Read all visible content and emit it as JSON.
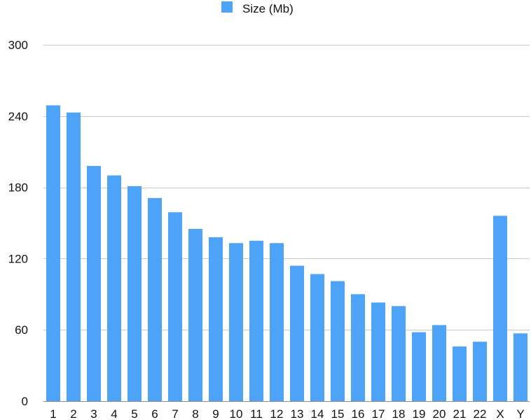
{
  "chart_data": {
    "type": "bar",
    "series": [
      {
        "name": "Size (Mb)",
        "color": "#4da3f7",
        "values": [
          249,
          243,
          198,
          190,
          181,
          171,
          159,
          145,
          138,
          133,
          135,
          133,
          114,
          107,
          101,
          90,
          83,
          80,
          58,
          64,
          46,
          50,
          156,
          57
        ]
      }
    ],
    "categories": [
      "1",
      "2",
      "3",
      "4",
      "5",
      "6",
      "7",
      "8",
      "9",
      "10",
      "11",
      "12",
      "13",
      "14",
      "15",
      "16",
      "17",
      "18",
      "19",
      "20",
      "21",
      "22",
      "X",
      "Y"
    ],
    "yticks": [
      "0",
      "60",
      "120",
      "180",
      "240",
      "300"
    ],
    "ylim": [
      0,
      300
    ],
    "grid": true,
    "legend_position": "top-center"
  }
}
